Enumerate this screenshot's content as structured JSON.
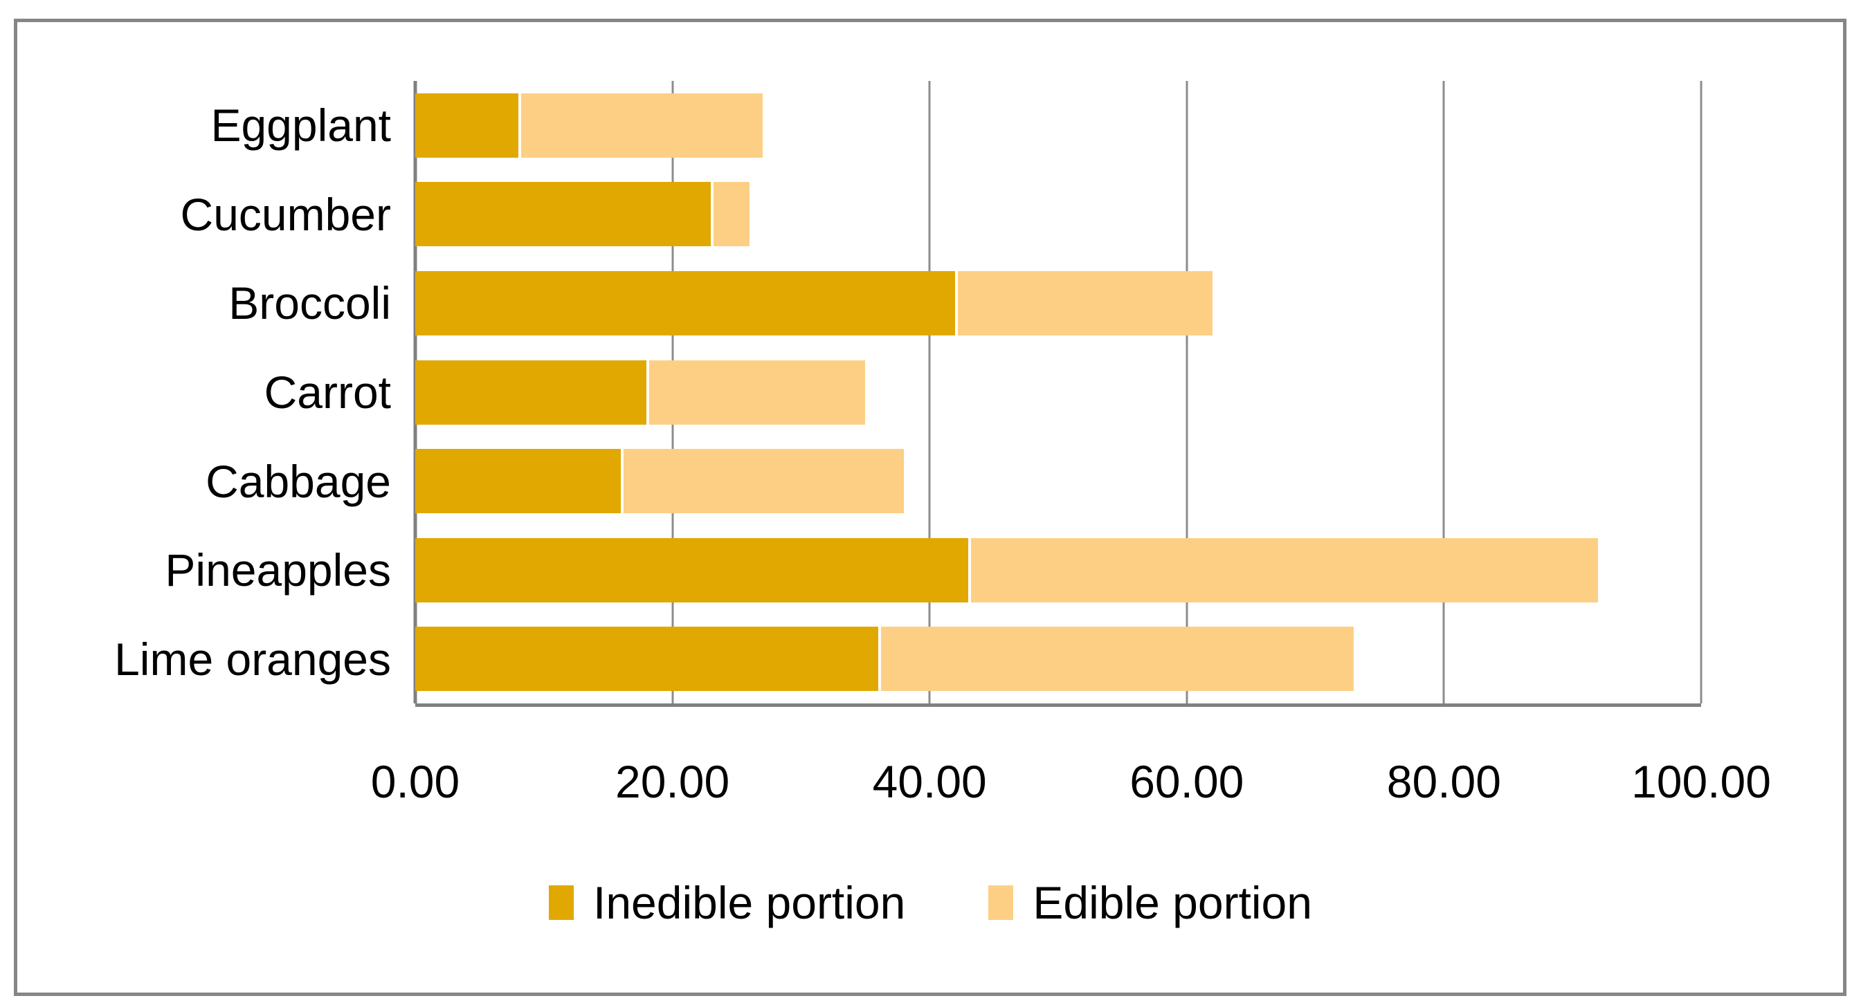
{
  "chart_data": {
    "type": "bar",
    "orientation": "horizontal",
    "stacked": true,
    "title": "",
    "xlabel": "",
    "ylabel": "",
    "categories": [
      "Eggplant",
      "Cucumber",
      "Broccoli",
      "Carrot",
      "Cabbage",
      "Pineapples",
      "Lime oranges"
    ],
    "series": [
      {
        "name": "Inedible portion",
        "color": "#E0A800",
        "values": [
          8,
          23,
          42,
          18,
          16,
          43,
          36
        ]
      },
      {
        "name": "Edible portion",
        "color": "#FDCF85",
        "values": [
          19,
          3,
          20,
          17,
          22,
          49,
          37
        ]
      }
    ],
    "totals": [
      27,
      26,
      62,
      35,
      38,
      92,
      73
    ],
    "xlim": [
      0,
      100
    ],
    "x_ticks": [
      "0.00",
      "20.00",
      "40.00",
      "60.00",
      "80.00",
      "100.00"
    ],
    "grid": true,
    "legend_position": "bottom-center"
  },
  "colors": {
    "inedible": "#E0A800",
    "edible": "#FDCF85",
    "gridline": "#8C8C8C",
    "axis_line": "#808080",
    "frame_border": "#868686",
    "text": "#000000",
    "background": "#ffffff"
  }
}
